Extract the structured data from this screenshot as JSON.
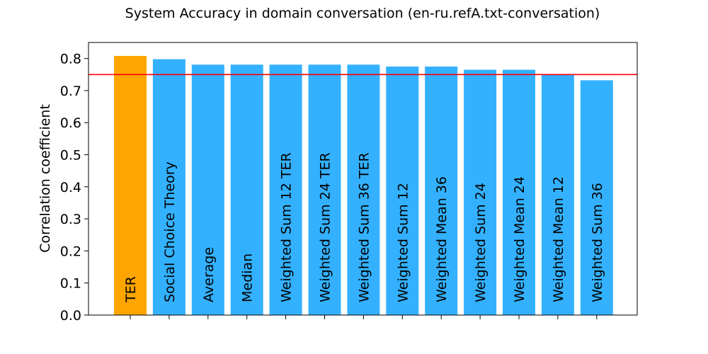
{
  "chart_data": {
    "type": "bar",
    "title": "System Accuracy in domain conversation (en-ru.refA.txt-conversation)",
    "xlabel": "",
    "ylabel": "Correlation coefficient",
    "ylim": [
      0,
      0.85
    ],
    "yticks": [
      "0.0",
      "0.1",
      "0.2",
      "0.3",
      "0.4",
      "0.5",
      "0.6",
      "0.7",
      "0.8"
    ],
    "categories": [
      "TER",
      "Social Choice Theory",
      "Average",
      "Median",
      "Weighted Sum 12 TER",
      "Weighted Sum 24 TER",
      "Weighted Sum 36 TER",
      "Weighted Sum 12",
      "Weighted Mean 36",
      "Weighted Sum 24",
      "Weighted Mean 24",
      "Weighted Mean 12",
      "Weighted Sum 36"
    ],
    "values": [
      0.808,
      0.798,
      0.781,
      0.781,
      0.781,
      0.781,
      0.781,
      0.775,
      0.775,
      0.765,
      0.765,
      0.75,
      0.732
    ],
    "colors": [
      "#FFA500",
      "#33B1FF",
      "#33B1FF",
      "#33B1FF",
      "#33B1FF",
      "#33B1FF",
      "#33B1FF",
      "#33B1FF",
      "#33B1FF",
      "#33B1FF",
      "#33B1FF",
      "#33B1FF",
      "#33B1FF"
    ],
    "reference_line": {
      "value": 0.75,
      "color": "#FF0000"
    },
    "grid": false
  }
}
